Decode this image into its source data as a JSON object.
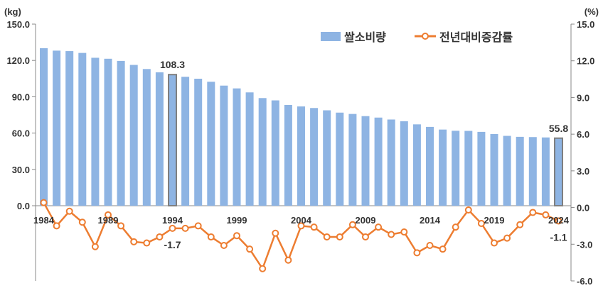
{
  "chart_data": {
    "type": "bar+line",
    "x": [
      1984,
      1985,
      1986,
      1987,
      1988,
      1989,
      1990,
      1991,
      1992,
      1993,
      1994,
      1995,
      1996,
      1997,
      1998,
      1999,
      2000,
      2001,
      2002,
      2003,
      2004,
      2005,
      2006,
      2007,
      2008,
      2009,
      2010,
      2011,
      2012,
      2013,
      2014,
      2015,
      2016,
      2017,
      2018,
      2019,
      2020,
      2021,
      2022,
      2023,
      2024
    ],
    "x_tick_labels": [
      "1984",
      "1989",
      "1994",
      "1999",
      "2004",
      "2009",
      "2014",
      "2019",
      "2024"
    ],
    "left_axis": {
      "unit_label": "(kg)",
      "ylim": [
        0,
        150
      ],
      "ticks": [
        "150.0",
        "120.0",
        "90.0",
        "60.0",
        "30.0",
        "0.0"
      ]
    },
    "right_axis": {
      "unit_label": "(%)",
      "ylim": [
        -6,
        15
      ],
      "ticks": [
        "15.0",
        "12.0",
        "9.0",
        "6.0",
        "3.0",
        "0.0",
        "-3.0",
        "-6.0"
      ]
    },
    "series": [
      {
        "name": "쌀소비량",
        "kind": "bar",
        "axis": "left",
        "color": "#8EB4E3",
        "highlight_color": "#7F7F7F",
        "values": [
          130.1,
          128.1,
          127.7,
          126.2,
          122.2,
          121.4,
          119.6,
          116.3,
          112.9,
          110.2,
          108.3,
          106.5,
          104.9,
          102.4,
          99.2,
          96.9,
          93.6,
          88.9,
          87.0,
          83.2,
          82.0,
          80.7,
          78.8,
          76.9,
          75.8,
          74.0,
          72.8,
          71.2,
          69.8,
          67.2,
          65.1,
          62.9,
          61.9,
          61.8,
          61.0,
          59.2,
          57.7,
          56.9,
          56.7,
          56.4,
          55.8
        ],
        "labels": [
          {
            "x": 1994,
            "text": "108.3"
          },
          {
            "x": 2024,
            "text": "55.8"
          }
        ]
      },
      {
        "name": "전년대비증감률",
        "kind": "line",
        "axis": "right",
        "color": "#ED7D31",
        "values": [
          0.4,
          -1.5,
          -0.3,
          -1.2,
          -3.2,
          -0.6,
          -1.5,
          -2.8,
          -2.9,
          -2.4,
          -1.7,
          -1.7,
          -1.5,
          -2.4,
          -3.1,
          -2.3,
          -3.4,
          -5.0,
          -2.1,
          -4.3,
          -1.5,
          -1.6,
          -2.4,
          -2.4,
          -1.4,
          -2.4,
          -1.6,
          -2.2,
          -2.0,
          -3.7,
          -3.1,
          -3.4,
          -1.6,
          -0.2,
          -1.3,
          -2.9,
          -2.5,
          -1.4,
          -0.4,
          -0.6,
          -1.1
        ],
        "labels": [
          {
            "x": 1994,
            "text": "-1.7"
          },
          {
            "x": 2024,
            "text": "-1.1"
          }
        ]
      }
    ],
    "legend_position": "top-right",
    "grid": false
  }
}
